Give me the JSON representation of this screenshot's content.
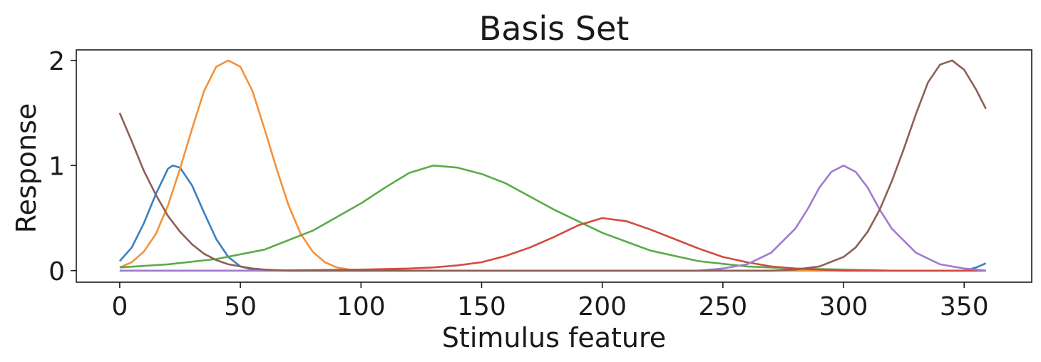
{
  "chart_data": {
    "type": "line",
    "title": "Basis Set",
    "xlabel": "Stimulus feature",
    "ylabel": "Response",
    "xlim": [
      -18,
      378
    ],
    "ylim": [
      -0.11,
      2.1
    ],
    "xticks": [
      "0",
      "50",
      "100",
      "150",
      "200",
      "250",
      "300",
      "350"
    ],
    "yticks": [
      "0",
      "1",
      "2"
    ],
    "grid": false,
    "legend": "none",
    "series": [
      {
        "color": "#3b7fc1",
        "x": [
          0,
          5,
          10,
          15,
          20,
          22,
          25,
          30,
          35,
          40,
          45,
          50,
          55,
          60,
          80,
          120,
          200,
          300,
          350,
          352,
          355,
          357,
          359
        ],
        "y": [
          0.09,
          0.22,
          0.45,
          0.73,
          0.97,
          1.0,
          0.98,
          0.81,
          0.55,
          0.3,
          0.13,
          0.04,
          0.01,
          0.0,
          0.0,
          0.0,
          0.0,
          0.0,
          0.0,
          0.01,
          0.03,
          0.05,
          0.07
        ]
      },
      {
        "color": "#f5913a",
        "x": [
          0,
          5,
          10,
          15,
          20,
          25,
          30,
          35,
          40,
          45,
          50,
          55,
          60,
          65,
          70,
          75,
          80,
          85,
          90,
          95,
          100,
          110,
          150,
          200,
          300,
          359
        ],
        "y": [
          0.03,
          0.08,
          0.18,
          0.35,
          0.62,
          0.97,
          1.35,
          1.71,
          1.94,
          2.0,
          1.94,
          1.71,
          1.35,
          0.97,
          0.62,
          0.35,
          0.18,
          0.08,
          0.03,
          0.01,
          0.0,
          0.0,
          0.0,
          0.0,
          0.0,
          0.0
        ]
      },
      {
        "color": "#5aab4a",
        "x": [
          0,
          20,
          40,
          60,
          80,
          100,
          110,
          120,
          130,
          140,
          150,
          160,
          180,
          200,
          220,
          240,
          260,
          280,
          300,
          320,
          340,
          359
        ],
        "y": [
          0.03,
          0.06,
          0.11,
          0.2,
          0.38,
          0.64,
          0.79,
          0.93,
          1.0,
          0.98,
          0.92,
          0.83,
          0.58,
          0.36,
          0.19,
          0.09,
          0.04,
          0.02,
          0.01,
          0.0,
          0.0,
          0.0
        ]
      },
      {
        "color": "#d24a40",
        "x": [
          0,
          60,
          100,
          120,
          130,
          140,
          150,
          160,
          170,
          180,
          190,
          200,
          210,
          220,
          230,
          240,
          250,
          260,
          270,
          280,
          290,
          300,
          320,
          359
        ],
        "y": [
          0.0,
          0.0,
          0.01,
          0.02,
          0.03,
          0.05,
          0.08,
          0.14,
          0.22,
          0.32,
          0.43,
          0.5,
          0.47,
          0.39,
          0.3,
          0.21,
          0.13,
          0.08,
          0.04,
          0.02,
          0.01,
          0.0,
          0.0,
          0.0
        ]
      },
      {
        "color": "#a07bd0",
        "x": [
          0,
          100,
          200,
          240,
          250,
          260,
          270,
          280,
          285,
          290,
          295,
          300,
          305,
          310,
          315,
          320,
          330,
          340,
          350,
          355,
          359
        ],
        "y": [
          0.0,
          0.0,
          0.0,
          0.0,
          0.02,
          0.06,
          0.17,
          0.4,
          0.58,
          0.79,
          0.94,
          1.0,
          0.94,
          0.79,
          0.58,
          0.4,
          0.17,
          0.06,
          0.02,
          0.01,
          0.0
        ]
      },
      {
        "color": "#8c5f55",
        "x": [
          0,
          5,
          10,
          15,
          20,
          25,
          30,
          35,
          40,
          45,
          50,
          55,
          60,
          70,
          80,
          100,
          150,
          200,
          250,
          270,
          280,
          290,
          300,
          305,
          310,
          315,
          320,
          325,
          330,
          335,
          340,
          345,
          350,
          355,
          359
        ],
        "y": [
          1.5,
          1.23,
          0.95,
          0.72,
          0.52,
          0.37,
          0.25,
          0.16,
          0.1,
          0.06,
          0.04,
          0.02,
          0.01,
          0.0,
          0.0,
          0.0,
          0.0,
          0.0,
          0.0,
          0.0,
          0.01,
          0.04,
          0.13,
          0.22,
          0.37,
          0.58,
          0.85,
          1.16,
          1.49,
          1.79,
          1.96,
          2.0,
          1.91,
          1.72,
          1.54
        ]
      }
    ]
  }
}
